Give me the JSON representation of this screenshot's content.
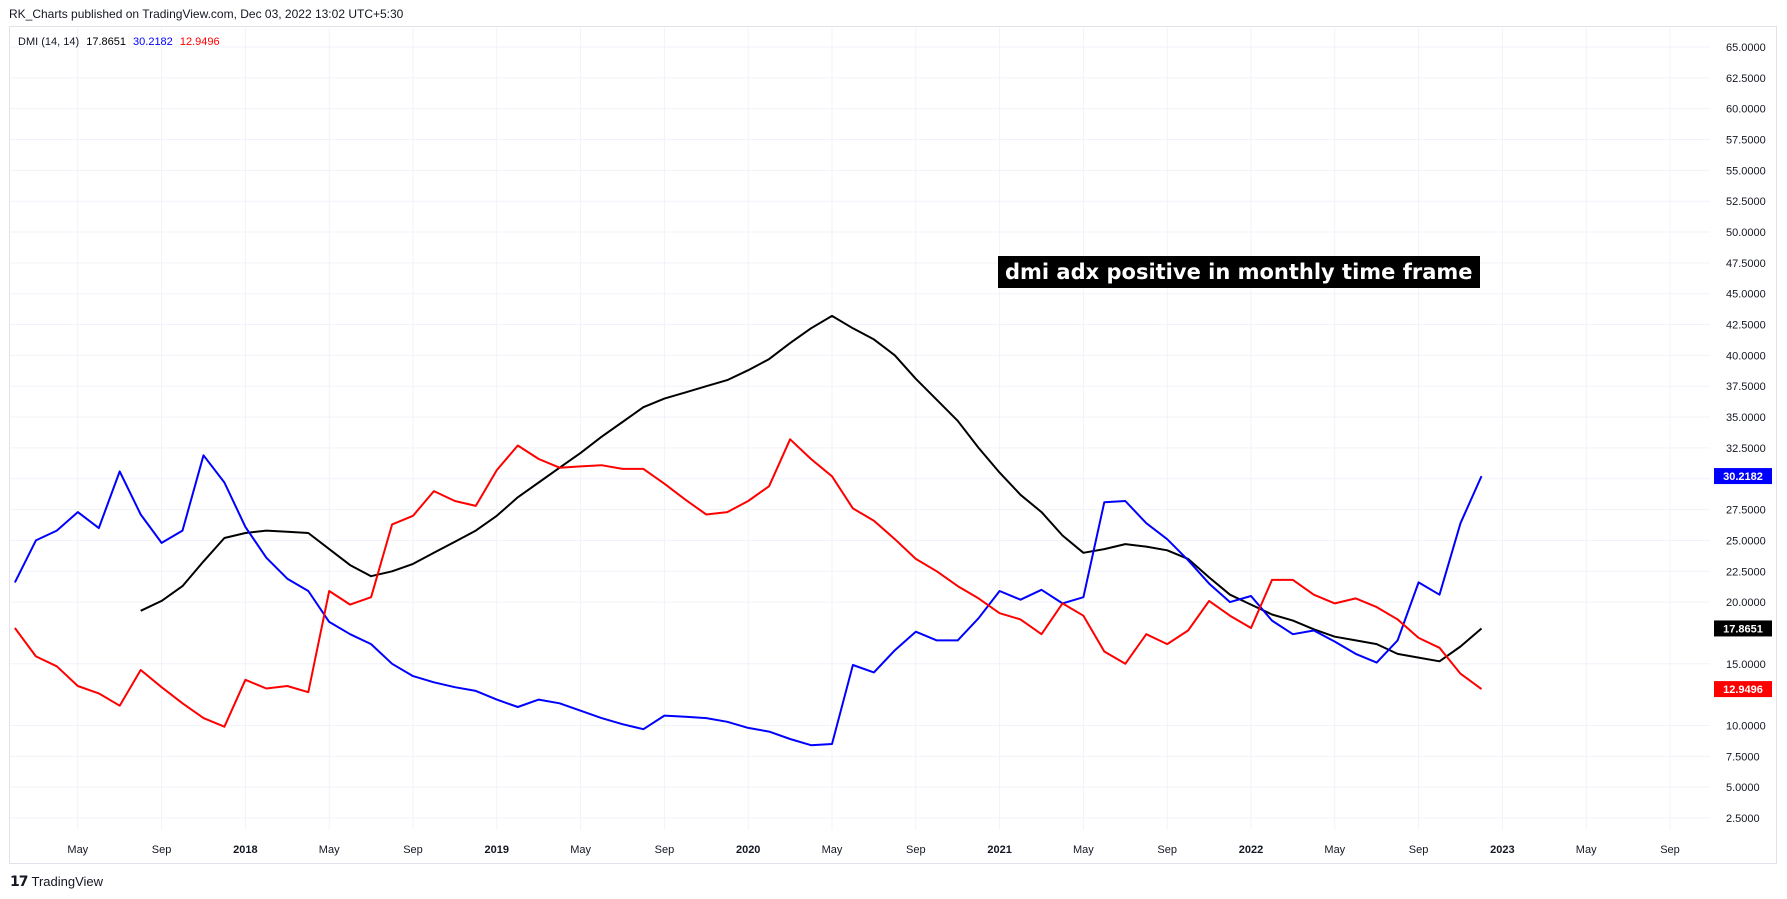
{
  "header": {
    "text": "RK_Charts published on TradingView.com, Dec 03, 2022 13:02 UTC+5:30"
  },
  "legend": {
    "name": "DMI (14, 14)",
    "adx": "17.8651",
    "plus_di": "30.2182",
    "minus_di": "12.9496"
  },
  "annotation": {
    "text": "dmi adx positive in monthly time frame"
  },
  "footer": {
    "logo": "𝟭𝟳",
    "brand": "TradingView"
  },
  "colors": {
    "adx": "#000000",
    "plus_di": "#0000ff",
    "minus_di": "#ff0000",
    "grid": "#f0f3fa"
  },
  "chart_data": {
    "type": "line",
    "title": "",
    "ylim": [
      0,
      66
    ],
    "grid": true,
    "y_ticks": [
      "65.0000",
      "62.5000",
      "60.0000",
      "57.5000",
      "55.0000",
      "52.5000",
      "50.0000",
      "47.5000",
      "45.0000",
      "42.5000",
      "40.0000",
      "37.5000",
      "35.0000",
      "32.5000",
      "30.0000",
      "27.5000",
      "25.0000",
      "22.5000",
      "20.0000",
      "15.0000",
      "10.0000",
      "7.5000",
      "5.0000",
      "2.5000"
    ],
    "x_ticks": [
      {
        "label": "May",
        "month": "2017-05",
        "bold": false
      },
      {
        "label": "Sep",
        "month": "2017-09",
        "bold": false
      },
      {
        "label": "2018",
        "month": "2018-01",
        "bold": true
      },
      {
        "label": "May",
        "month": "2018-05",
        "bold": false
      },
      {
        "label": "Sep",
        "month": "2018-09",
        "bold": false
      },
      {
        "label": "2019",
        "month": "2019-01",
        "bold": true
      },
      {
        "label": "May",
        "month": "2019-05",
        "bold": false
      },
      {
        "label": "Sep",
        "month": "2019-09",
        "bold": false
      },
      {
        "label": "2020",
        "month": "2020-01",
        "bold": true
      },
      {
        "label": "May",
        "month": "2020-05",
        "bold": false
      },
      {
        "label": "Sep",
        "month": "2020-09",
        "bold": false
      },
      {
        "label": "2021",
        "month": "2021-01",
        "bold": true
      },
      {
        "label": "May",
        "month": "2021-05",
        "bold": false
      },
      {
        "label": "Sep",
        "month": "2021-09",
        "bold": false
      },
      {
        "label": "2022",
        "month": "2022-01",
        "bold": true
      },
      {
        "label": "May",
        "month": "2022-05",
        "bold": false
      },
      {
        "label": "Sep",
        "month": "2022-09",
        "bold": false
      },
      {
        "label": "2023",
        "month": "2023-01",
        "bold": true
      },
      {
        "label": "May",
        "month": "2023-05",
        "bold": false
      },
      {
        "label": "Sep",
        "month": "2023-09",
        "bold": false
      }
    ],
    "x_range": [
      "2017-02",
      "2023-11"
    ],
    "series": [
      {
        "key": "adx",
        "color": "#000000",
        "last_label": "17.8651",
        "points": [
          [
            "2017-08",
            19.3
          ],
          [
            "2017-09",
            20.1
          ],
          [
            "2017-10",
            21.3
          ],
          [
            "2017-11",
            23.3
          ],
          [
            "2017-12",
            25.2
          ],
          [
            "2018-01",
            25.6
          ],
          [
            "2018-02",
            25.8
          ],
          [
            "2018-03",
            25.7
          ],
          [
            "2018-04",
            25.6
          ],
          [
            "2018-05",
            24.3
          ],
          [
            "2018-06",
            23.0
          ],
          [
            "2018-07",
            22.1
          ],
          [
            "2018-08",
            22.5
          ],
          [
            "2018-09",
            23.1
          ],
          [
            "2018-10",
            24.0
          ],
          [
            "2018-11",
            24.9
          ],
          [
            "2018-12",
            25.8
          ],
          [
            "2019-01",
            27.0
          ],
          [
            "2019-02",
            28.5
          ],
          [
            "2019-03",
            29.7
          ],
          [
            "2019-04",
            30.9
          ],
          [
            "2019-05",
            32.1
          ],
          [
            "2019-06",
            33.4
          ],
          [
            "2019-07",
            34.6
          ],
          [
            "2019-08",
            35.8
          ],
          [
            "2019-09",
            36.5
          ],
          [
            "2019-10",
            37.0
          ],
          [
            "2019-11",
            37.5
          ],
          [
            "2019-12",
            38.0
          ],
          [
            "2020-01",
            38.8
          ],
          [
            "2020-02",
            39.7
          ],
          [
            "2020-03",
            41.0
          ],
          [
            "2020-04",
            42.2
          ],
          [
            "2020-05",
            43.2
          ],
          [
            "2020-06",
            42.2
          ],
          [
            "2020-07",
            41.3
          ],
          [
            "2020-08",
            40.0
          ],
          [
            "2020-09",
            38.1
          ],
          [
            "2020-10",
            36.4
          ],
          [
            "2020-11",
            34.7
          ],
          [
            "2020-12",
            32.5
          ],
          [
            "2021-01",
            30.5
          ],
          [
            "2021-02",
            28.7
          ],
          [
            "2021-03",
            27.3
          ],
          [
            "2021-04",
            25.4
          ],
          [
            "2021-05",
            24.0
          ],
          [
            "2021-06",
            24.3
          ],
          [
            "2021-07",
            24.7
          ],
          [
            "2021-08",
            24.5
          ],
          [
            "2021-09",
            24.2
          ],
          [
            "2021-10",
            23.5
          ],
          [
            "2021-11",
            22.0
          ],
          [
            "2021-12",
            20.6
          ],
          [
            "2022-01",
            19.8
          ],
          [
            "2022-02",
            19.0
          ],
          [
            "2022-03",
            18.5
          ],
          [
            "2022-04",
            17.8
          ],
          [
            "2022-05",
            17.2
          ],
          [
            "2022-06",
            16.9
          ],
          [
            "2022-07",
            16.6
          ],
          [
            "2022-08",
            15.8
          ],
          [
            "2022-09",
            15.5
          ],
          [
            "2022-10",
            15.2
          ],
          [
            "2022-11",
            16.4
          ],
          [
            "2022-12",
            17.8651
          ]
        ]
      },
      {
        "key": "plus_di",
        "color": "#0000ff",
        "last_label": "30.2182",
        "points": [
          [
            "2017-02",
            21.6
          ],
          [
            "2017-03",
            25.0
          ],
          [
            "2017-04",
            25.8
          ],
          [
            "2017-05",
            27.3
          ],
          [
            "2017-06",
            26.0
          ],
          [
            "2017-07",
            30.6
          ],
          [
            "2017-08",
            27.1
          ],
          [
            "2017-09",
            24.8
          ],
          [
            "2017-10",
            25.8
          ],
          [
            "2017-11",
            31.9
          ],
          [
            "2017-12",
            29.7
          ],
          [
            "2018-01",
            26.1
          ],
          [
            "2018-02",
            23.6
          ],
          [
            "2018-03",
            21.9
          ],
          [
            "2018-04",
            20.9
          ],
          [
            "2018-05",
            18.4
          ],
          [
            "2018-06",
            17.4
          ],
          [
            "2018-07",
            16.6
          ],
          [
            "2018-08",
            15.0
          ],
          [
            "2018-09",
            14.0
          ],
          [
            "2018-10",
            13.5
          ],
          [
            "2018-11",
            13.1
          ],
          [
            "2018-12",
            12.8
          ],
          [
            "2019-01",
            12.1
          ],
          [
            "2019-02",
            11.5
          ],
          [
            "2019-03",
            12.1
          ],
          [
            "2019-04",
            11.8
          ],
          [
            "2019-05",
            11.2
          ],
          [
            "2019-06",
            10.6
          ],
          [
            "2019-07",
            10.1
          ],
          [
            "2019-08",
            9.7
          ],
          [
            "2019-09",
            10.8
          ],
          [
            "2019-10",
            10.7
          ],
          [
            "2019-11",
            10.6
          ],
          [
            "2019-12",
            10.3
          ],
          [
            "2020-01",
            9.8
          ],
          [
            "2020-02",
            9.5
          ],
          [
            "2020-03",
            8.9
          ],
          [
            "2020-04",
            8.4
          ],
          [
            "2020-05",
            8.5
          ],
          [
            "2020-06",
            14.9
          ],
          [
            "2020-07",
            14.3
          ],
          [
            "2020-08",
            16.1
          ],
          [
            "2020-09",
            17.6
          ],
          [
            "2020-10",
            16.9
          ],
          [
            "2020-11",
            16.9
          ],
          [
            "2020-12",
            18.7
          ],
          [
            "2021-01",
            20.9
          ],
          [
            "2021-02",
            20.2
          ],
          [
            "2021-03",
            21.0
          ],
          [
            "2021-04",
            19.9
          ],
          [
            "2021-05",
            20.4
          ],
          [
            "2021-06",
            28.1
          ],
          [
            "2021-07",
            28.2
          ],
          [
            "2021-08",
            26.4
          ],
          [
            "2021-09",
            25.1
          ],
          [
            "2021-10",
            23.4
          ],
          [
            "2021-11",
            21.5
          ],
          [
            "2021-12",
            20.0
          ],
          [
            "2022-01",
            20.5
          ],
          [
            "2022-02",
            18.5
          ],
          [
            "2022-03",
            17.4
          ],
          [
            "2022-04",
            17.7
          ],
          [
            "2022-05",
            16.8
          ],
          [
            "2022-06",
            15.8
          ],
          [
            "2022-07",
            15.1
          ],
          [
            "2022-08",
            16.9
          ],
          [
            "2022-09",
            21.6
          ],
          [
            "2022-10",
            20.6
          ],
          [
            "2022-11",
            26.4
          ],
          [
            "2022-12",
            30.2182
          ]
        ]
      },
      {
        "key": "minus_di",
        "color": "#ff0000",
        "last_label": "12.9496",
        "points": [
          [
            "2017-02",
            17.9
          ],
          [
            "2017-03",
            15.6
          ],
          [
            "2017-04",
            14.8
          ],
          [
            "2017-05",
            13.2
          ],
          [
            "2017-06",
            12.6
          ],
          [
            "2017-07",
            11.6
          ],
          [
            "2017-08",
            14.5
          ],
          [
            "2017-09",
            13.1
          ],
          [
            "2017-10",
            11.8
          ],
          [
            "2017-11",
            10.6
          ],
          [
            "2017-12",
            9.9
          ],
          [
            "2018-01",
            13.7
          ],
          [
            "2018-02",
            13.0
          ],
          [
            "2018-03",
            13.2
          ],
          [
            "2018-04",
            12.7
          ],
          [
            "2018-05",
            20.9
          ],
          [
            "2018-06",
            19.8
          ],
          [
            "2018-07",
            20.4
          ],
          [
            "2018-08",
            26.3
          ],
          [
            "2018-09",
            27.0
          ],
          [
            "2018-10",
            29.0
          ],
          [
            "2018-11",
            28.2
          ],
          [
            "2018-12",
            27.8
          ],
          [
            "2019-01",
            30.7
          ],
          [
            "2019-02",
            32.7
          ],
          [
            "2019-03",
            31.6
          ],
          [
            "2019-04",
            30.9
          ],
          [
            "2019-05",
            31.0
          ],
          [
            "2019-06",
            31.1
          ],
          [
            "2019-07",
            30.8
          ],
          [
            "2019-08",
            30.8
          ],
          [
            "2019-09",
            29.6
          ],
          [
            "2019-10",
            28.3
          ],
          [
            "2019-11",
            27.1
          ],
          [
            "2019-12",
            27.3
          ],
          [
            "2020-01",
            28.2
          ],
          [
            "2020-02",
            29.4
          ],
          [
            "2020-03",
            33.2
          ],
          [
            "2020-04",
            31.6
          ],
          [
            "2020-05",
            30.2
          ],
          [
            "2020-06",
            27.6
          ],
          [
            "2020-07",
            26.6
          ],
          [
            "2020-08",
            25.1
          ],
          [
            "2020-09",
            23.5
          ],
          [
            "2020-10",
            22.5
          ],
          [
            "2020-11",
            21.3
          ],
          [
            "2020-12",
            20.3
          ],
          [
            "2021-01",
            19.1
          ],
          [
            "2021-02",
            18.6
          ],
          [
            "2021-03",
            17.4
          ],
          [
            "2021-04",
            19.9
          ],
          [
            "2021-05",
            18.9
          ],
          [
            "2021-06",
            16.0
          ],
          [
            "2021-07",
            15.0
          ],
          [
            "2021-08",
            17.4
          ],
          [
            "2021-09",
            16.6
          ],
          [
            "2021-10",
            17.7
          ],
          [
            "2021-11",
            20.1
          ],
          [
            "2021-12",
            18.9
          ],
          [
            "2022-01",
            17.9
          ],
          [
            "2022-02",
            21.8
          ],
          [
            "2022-03",
            21.8
          ],
          [
            "2022-04",
            20.6
          ],
          [
            "2022-05",
            19.9
          ],
          [
            "2022-06",
            20.3
          ],
          [
            "2022-07",
            19.6
          ],
          [
            "2022-08",
            18.6
          ],
          [
            "2022-09",
            17.1
          ],
          [
            "2022-10",
            16.3
          ],
          [
            "2022-11",
            14.2
          ],
          [
            "2022-12",
            12.9496
          ]
        ]
      }
    ]
  }
}
